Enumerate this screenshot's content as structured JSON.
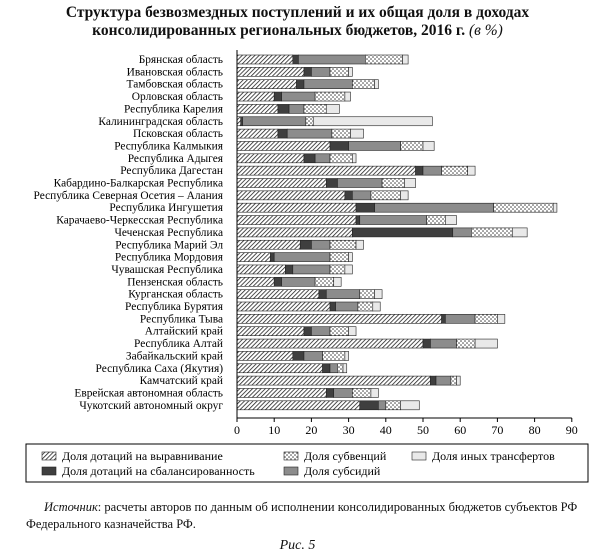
{
  "title": {
    "line1": "Структура безвозмездных поступлений и их общая доля в доходах",
    "line2": "консолидированных региональных бюджетов, 2016 г.",
    "unit": "(в %)"
  },
  "chart_data": {
    "type": "bar",
    "orientation": "horizontal",
    "stacked": true,
    "xlim": [
      0,
      90
    ],
    "xticks": [
      0,
      10,
      20,
      30,
      40,
      50,
      60,
      70,
      80,
      90
    ],
    "grid": false,
    "legend_position": "bottom",
    "categories": [
      "Брянская область",
      "Ивановская область",
      "Тамбовская область",
      "Орловская область",
      "Республика Карелия",
      "Калининградская область",
      "Псковская область",
      "Республика Калмыкия",
      "Республика Адыгея",
      "Республика Дагестан",
      "Кабардино-Балкарская Республика",
      "Республика Северная Осетия – Алания",
      "Республика Ингушетия",
      "Карачаево-Черкесская Республика",
      "Чеченская Республика",
      "Республика Марий Эл",
      "Республика Мордовия",
      "Чувашская Республика",
      "Пензенская область",
      "Курганская область",
      "Республика Бурятия",
      "Республика Тыва",
      "Алтайский край",
      "Республика Алтай",
      "Забайкальский край",
      "Республика Саха (Якутия)",
      "Камчатский край",
      "Еврейская автономная область",
      "Чукотский автономный округ"
    ],
    "series": [
      {
        "name": "Доля дотаций на выравнивание",
        "pattern": "hatch",
        "values": [
          15,
          18,
          16,
          10,
          11,
          1,
          11,
          25,
          18,
          48,
          24,
          29,
          32,
          32,
          31,
          17,
          9,
          13,
          10,
          22,
          25,
          55,
          18,
          50,
          15,
          23,
          52,
          24,
          33
        ]
      },
      {
        "name": "Доля дотаций на сбалансированность",
        "pattern": "dark",
        "values": [
          1.5,
          2,
          2,
          2,
          3,
          0.5,
          2.5,
          5,
          3,
          2,
          3,
          2,
          5,
          1,
          27,
          3,
          1,
          2,
          2,
          2,
          1.5,
          1,
          2,
          2,
          3,
          2,
          1.5,
          2,
          5
        ]
      },
      {
        "name": "Доля субсидий",
        "pattern": "gray",
        "values": [
          18,
          5,
          13,
          9,
          4,
          17,
          12,
          14,
          4,
          5,
          12,
          5,
          32,
          18,
          5,
          5,
          15,
          10,
          9,
          9,
          6,
          8,
          5,
          7,
          5,
          2,
          4,
          5,
          2
        ]
      },
      {
        "name": "Доля субвенций",
        "pattern": "dots",
        "values": [
          10,
          5,
          6,
          8,
          6,
          2,
          5,
          6,
          6,
          7,
          6,
          8,
          16,
          5,
          11,
          7,
          5,
          4,
          5,
          4,
          4,
          6,
          5,
          5,
          6,
          1.5,
          1.5,
          5,
          4
        ]
      },
      {
        "name": "Доля иных трансфертов",
        "pattern": "white",
        "values": [
          1.5,
          1,
          1,
          1.5,
          3.5,
          32,
          3.5,
          3,
          1,
          2,
          3,
          2,
          1,
          3,
          4,
          2,
          1,
          2,
          2,
          2,
          2,
          2,
          2,
          6,
          1,
          1,
          1,
          2,
          5
        ]
      }
    ],
    "legend": [
      {
        "series": 0,
        "label": "Доля дотаций на выравнивание"
      },
      {
        "series": 3,
        "label": "Доля субвенций"
      },
      {
        "series": 4,
        "label": "Доля иных трансфертов"
      },
      {
        "series": 1,
        "label": "Доля дотаций на сбалансированность"
      },
      {
        "series": 2,
        "label": "Доля субсидий"
      }
    ]
  },
  "source": {
    "label": "Источник",
    "text": ": расчеты авторов по данным об исполнении консолидированных бюджетов субъектов РФ Федерального казначейства РФ."
  },
  "figure_caption": "Рис. 5"
}
